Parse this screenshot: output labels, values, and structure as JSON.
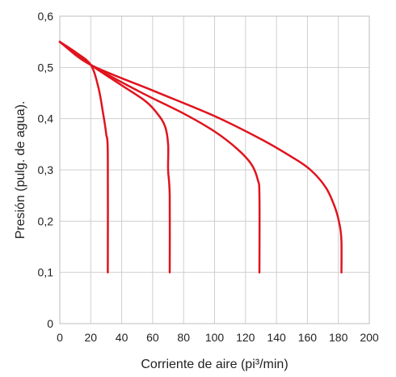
{
  "chart_data": {
    "type": "line",
    "xlabel": "Corriente de aire (pi³/min)",
    "ylabel": "Presión (pulg. de agua).",
    "xlim": [
      0,
      200
    ],
    "ylim": [
      0,
      0.6
    ],
    "x_ticks": [
      0,
      20,
      40,
      60,
      80,
      100,
      120,
      140,
      160,
      180,
      200
    ],
    "x_tick_labels": [
      "0",
      "20",
      "40",
      "60",
      "80",
      "100",
      "120",
      "140",
      "160",
      "180",
      "200"
    ],
    "y_ticks": [
      0,
      0.1,
      0.2,
      0.3,
      0.4,
      0.5,
      0.6
    ],
    "y_tick_labels": [
      "0",
      "0,1",
      "0,2",
      "0,3",
      "0,4",
      "0,5",
      "0,6"
    ],
    "grid": true,
    "color": "#e0141e",
    "series": [
      {
        "points": [
          [
            0,
            0.55
          ],
          [
            10,
            0.53
          ],
          [
            20,
            0.505
          ],
          [
            25,
            0.46
          ],
          [
            28,
            0.41
          ],
          [
            30,
            0.37
          ],
          [
            31,
            0.33
          ],
          [
            31,
            0.1
          ]
        ]
      },
      {
        "points": [
          [
            0,
            0.55
          ],
          [
            20,
            0.505
          ],
          [
            40,
            0.465
          ],
          [
            55,
            0.435
          ],
          [
            63,
            0.41
          ],
          [
            68,
            0.385
          ],
          [
            70,
            0.35
          ],
          [
            70,
            0.3
          ],
          [
            71,
            0.25
          ],
          [
            71,
            0.1
          ]
        ]
      },
      {
        "points": [
          [
            0,
            0.55
          ],
          [
            20,
            0.505
          ],
          [
            50,
            0.455
          ],
          [
            80,
            0.41
          ],
          [
            100,
            0.375
          ],
          [
            115,
            0.34
          ],
          [
            124,
            0.31
          ],
          [
            128,
            0.28
          ],
          [
            129,
            0.25
          ],
          [
            129,
            0.1
          ]
        ]
      },
      {
        "points": [
          [
            0,
            0.55
          ],
          [
            20,
            0.505
          ],
          [
            60,
            0.455
          ],
          [
            100,
            0.405
          ],
          [
            130,
            0.36
          ],
          [
            150,
            0.325
          ],
          [
            162,
            0.3
          ],
          [
            172,
            0.265
          ],
          [
            178,
            0.225
          ],
          [
            181,
            0.19
          ],
          [
            182,
            0.16
          ],
          [
            182,
            0.1
          ]
        ]
      }
    ]
  }
}
